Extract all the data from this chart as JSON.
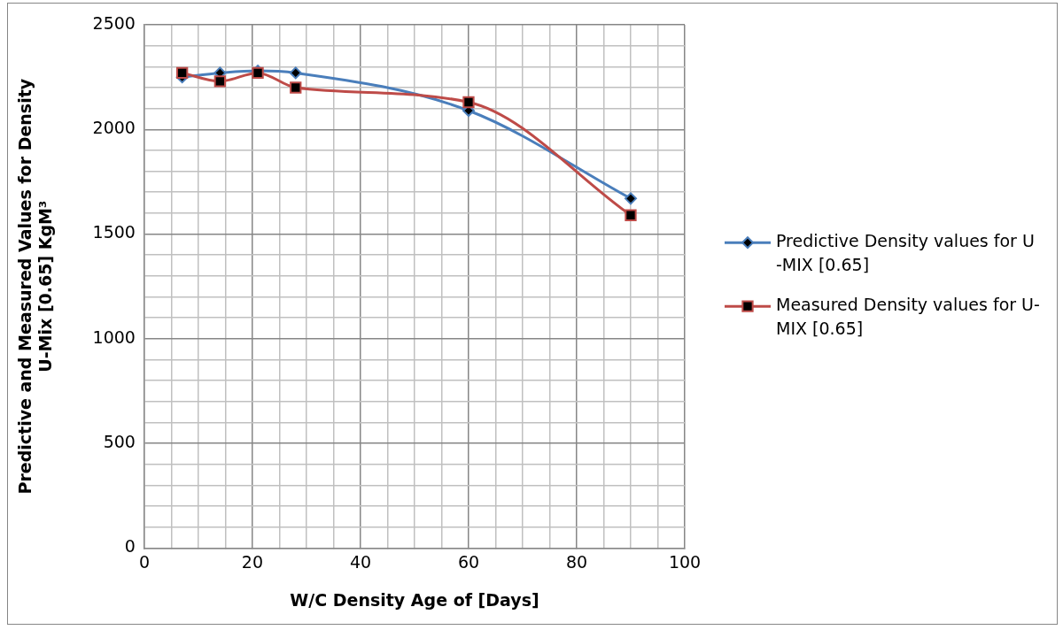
{
  "chart_data": {
    "type": "line",
    "xlabel": "W/C Density Age of [Days]",
    "ylabel": "Predictive and Measured Values for Density U-Mix [0.65] KgM³",
    "x": [
      7,
      14,
      21,
      28,
      60,
      90
    ],
    "series": [
      {
        "name": "Predictive Density values for U -MIX [0.65]",
        "color": "#4a7ebb",
        "marker": "diamond",
        "values": [
          2250,
          2270,
          2280,
          2270,
          2090,
          1670
        ]
      },
      {
        "name": "Measured Density values for U- MIX [0.65]",
        "color": "#be4b48",
        "marker": "square",
        "values": [
          2270,
          2230,
          2270,
          2200,
          2130,
          1590
        ]
      }
    ],
    "xlim": [
      0,
      100
    ],
    "xticks": [
      0,
      {
        "value": 5,
        "label": null
      },
      {
        "value": 10,
        "label": null
      },
      {
        "value": 15,
        "label": null
      },
      20,
      {
        "value": 25,
        "label": null
      },
      {
        "value": 30,
        "label": null
      },
      {
        "value": 35,
        "label": null
      },
      40,
      {
        "value": 45,
        "label": null
      },
      {
        "value": 50,
        "label": null
      },
      {
        "value": 55,
        "label": null
      },
      60,
      {
        "value": 65,
        "label": null
      },
      {
        "value": 70,
        "label": null
      },
      {
        "value": 75,
        "label": null
      },
      80,
      {
        "value": 85,
        "label": null
      },
      {
        "value": 90,
        "label": null
      },
      {
        "value": 95,
        "label": null
      },
      100
    ],
    "ylim": [
      0,
      2500
    ],
    "yticks": [
      0,
      {
        "value": 100,
        "label": null
      },
      {
        "value": 200,
        "label": null
      },
      {
        "value": 300,
        "label": null
      },
      {
        "value": 400,
        "label": null
      },
      500,
      {
        "value": 600,
        "label": null
      },
      {
        "value": 700,
        "label": null
      },
      {
        "value": 800,
        "label": null
      },
      {
        "value": 900,
        "label": null
      },
      1000,
      {
        "value": 1100,
        "label": null
      },
      {
        "value": 1200,
        "label": null
      },
      {
        "value": 1300,
        "label": null
      },
      {
        "value": 1400,
        "label": null
      },
      1500,
      {
        "value": 1600,
        "label": null
      },
      {
        "value": 1700,
        "label": null
      },
      {
        "value": 1800,
        "label": null
      },
      {
        "value": 1900,
        "label": null
      },
      2000,
      {
        "value": 2100,
        "label": null
      },
      {
        "value": 2200,
        "label": null
      },
      {
        "value": 2300,
        "label": null
      },
      {
        "value": 2400,
        "label": null
      },
      2500
    ],
    "grid": true,
    "legend": "right",
    "line_style": "solid"
  }
}
